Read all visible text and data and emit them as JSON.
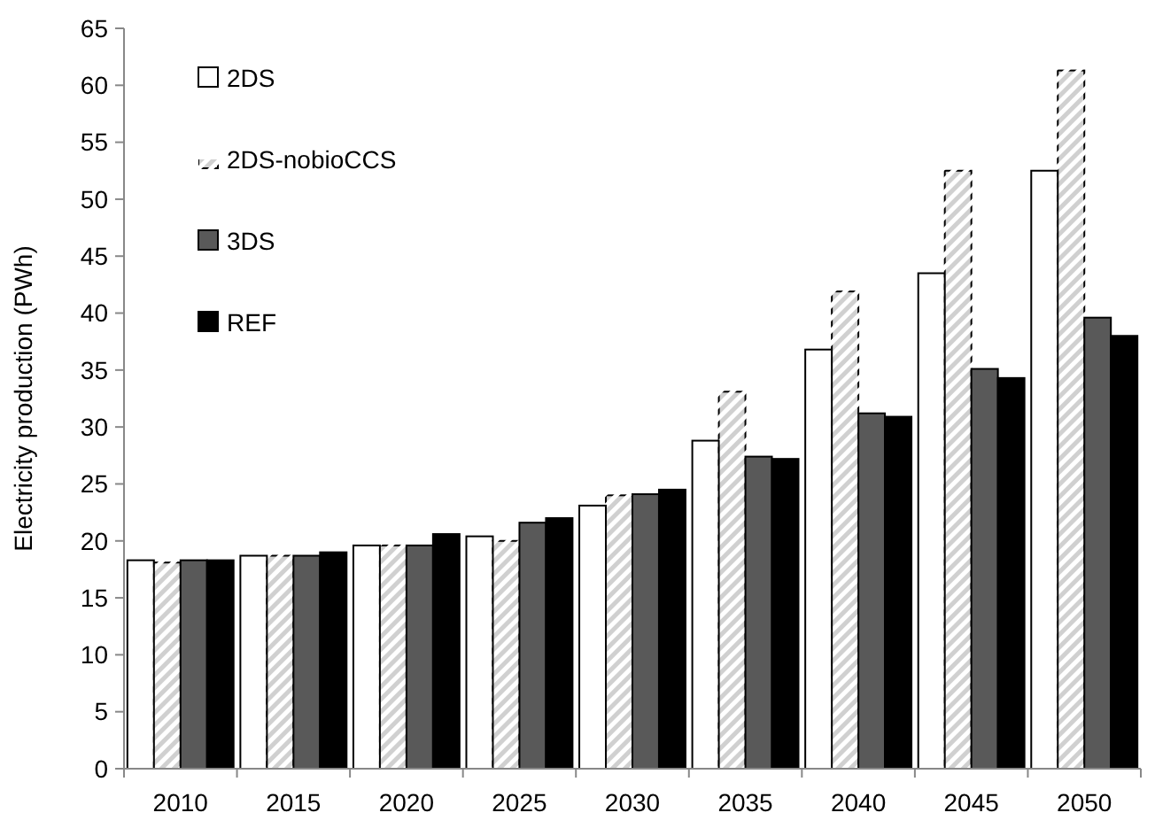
{
  "chart_data": {
    "type": "bar",
    "ylabel": "Electricity production (PWh)",
    "categories": [
      "2010",
      "2015",
      "2020",
      "2025",
      "2030",
      "2035",
      "2040",
      "2045",
      "2050"
    ],
    "series": [
      {
        "name": "2DS",
        "color": "#ffffff",
        "values": [
          18.3,
          18.7,
          19.6,
          20.4,
          23.1,
          28.8,
          36.8,
          43.5,
          52.5
        ]
      },
      {
        "name": "2DS-nobioCCS",
        "color": "#d0d0d0",
        "values": [
          18.1,
          18.7,
          19.6,
          20.0,
          24.0,
          33.1,
          41.9,
          52.5,
          61.3
        ]
      },
      {
        "name": "3DS",
        "color": "#595959",
        "values": [
          18.3,
          18.7,
          19.6,
          21.6,
          24.1,
          27.4,
          31.2,
          35.1,
          39.6
        ]
      },
      {
        "name": "REF",
        "color": "#000000",
        "values": [
          18.3,
          19.0,
          20.6,
          22.0,
          24.5,
          27.2,
          30.9,
          34.3,
          38.0
        ]
      }
    ],
    "ylim": [
      0,
      65
    ],
    "yticks": [
      0,
      5,
      10,
      15,
      20,
      25,
      30,
      35,
      40,
      45,
      50,
      55,
      60,
      65
    ],
    "grid": false,
    "legend": "top left"
  }
}
